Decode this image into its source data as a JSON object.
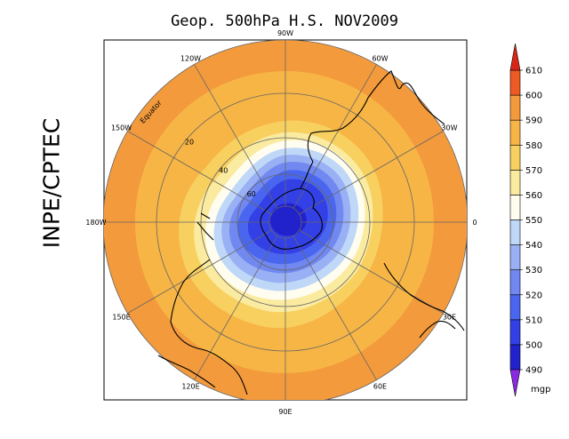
{
  "title": "Geop. 500hPa H.S. NOV2009",
  "credit": "INPE/CPTEC",
  "map": {
    "variable": "500 hPa geopotential height",
    "projection": "south polar stereographic",
    "longitude_labels": [
      {
        "text": "90W",
        "lon": -90
      },
      {
        "text": "60W",
        "lon": -60
      },
      {
        "text": "30W",
        "lon": -30
      },
      {
        "text": "0",
        "lon": 0
      },
      {
        "text": "30E",
        "lon": 30
      },
      {
        "text": "60E",
        "lon": 60
      },
      {
        "text": "90E",
        "lon": 90
      },
      {
        "text": "120E",
        "lon": 120
      },
      {
        "text": "150E",
        "lon": 150
      },
      {
        "text": "180W",
        "lon": 180
      },
      {
        "text": "150W",
        "lon": -150
      },
      {
        "text": "120W",
        "lon": -120
      }
    ],
    "latitude_labels": [
      {
        "text": "Equator",
        "lat": 0
      },
      {
        "text": "20",
        "lat": -20
      },
      {
        "text": "40",
        "lat": -40
      },
      {
        "text": "60",
        "lat": -60
      }
    ]
  },
  "colorbar": {
    "unit": "mgp",
    "levels": [
      "490",
      "500",
      "510",
      "520",
      "530",
      "540",
      "550",
      "560",
      "570",
      "580",
      "590",
      "600",
      "610"
    ],
    "colors": {
      "below": "#8a2be2",
      "b490": "#2222cc",
      "b500": "#3340e6",
      "b510": "#4a66ee",
      "b520": "#7088f0",
      "b530": "#99b0f4",
      "b540": "#c0d8f8",
      "b550": "#fffdf0",
      "b560": "#fbeba0",
      "b570": "#f8d060",
      "b580": "#f7b545",
      "b590": "#f39a3c",
      "b600": "#ee5a24",
      "above": "#d82618"
    }
  }
}
